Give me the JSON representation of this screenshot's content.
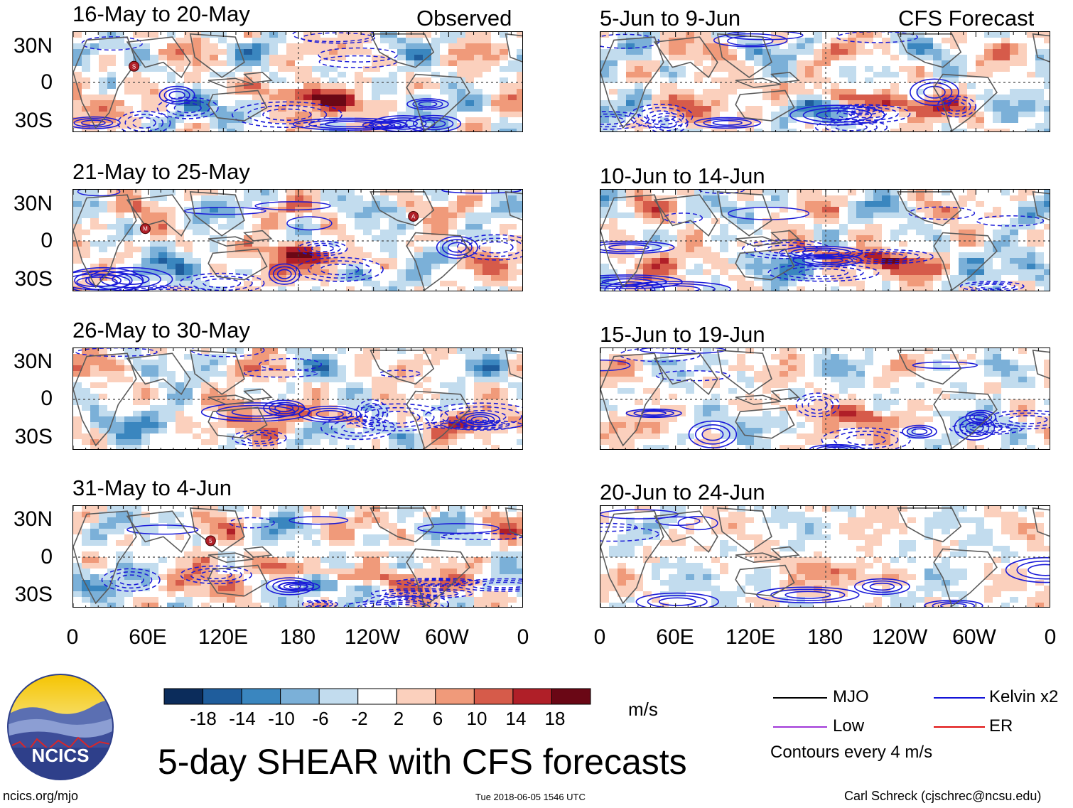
{
  "chart_data": {
    "type": "heatmap",
    "title": "5-day SHEAR with CFS forecasts",
    "units": "m/s",
    "colorbar": {
      "ticks": [
        "-18",
        "-14",
        "-10",
        "-6",
        "-2",
        "2",
        "6",
        "10",
        "14",
        "18"
      ],
      "colors": [
        "#0b2c5b",
        "#1f5d9c",
        "#3a86bf",
        "#7bb0d8",
        "#c2dcee",
        "#ffffff",
        "#fbd0bd",
        "#f09a7a",
        "#d65b4a",
        "#b01f28",
        "#6a0715"
      ]
    },
    "lat_ticks": [
      "30N",
      "0",
      "30S"
    ],
    "lon_ticks": [
      "0",
      "60E",
      "120E",
      "180",
      "120W",
      "60W",
      "0"
    ],
    "legend": [
      {
        "name": "MJO",
        "color": "#000000"
      },
      {
        "name": "Kelvin x2",
        "color": "#1414d8"
      },
      {
        "name": "Low",
        "color": "#a038d8"
      },
      {
        "name": "ER",
        "color": "#e01010"
      }
    ],
    "contour_note": "Contours every 4 m/s",
    "observed_panels": [
      {
        "title": "16-May to 20-May",
        "tag": "Observed",
        "storms": [
          "S"
        ]
      },
      {
        "title": "21-May to 25-May",
        "tag": "",
        "storms": [
          "M",
          "A"
        ]
      },
      {
        "title": "26-May to 30-May",
        "tag": "",
        "storms": []
      },
      {
        "title": "31-May to 4-Jun",
        "tag": "",
        "storms": [
          "5"
        ]
      }
    ],
    "forecast_panels": [
      {
        "title": "5-Jun to 9-Jun",
        "tag": "CFS Forecast"
      },
      {
        "title": "10-Jun to 14-Jun",
        "tag": ""
      },
      {
        "title": "15-Jun to 19-Jun",
        "tag": ""
      },
      {
        "title": "20-Jun to 24-Jun",
        "tag": ""
      }
    ]
  },
  "logo": {
    "text": "NCICS"
  },
  "footer": {
    "left": "ncics.org/mjo",
    "center": "Tue 2018-06-05 1546 UTC",
    "right": "Carl Schreck (cjschrec@ncsu.edu)"
  }
}
